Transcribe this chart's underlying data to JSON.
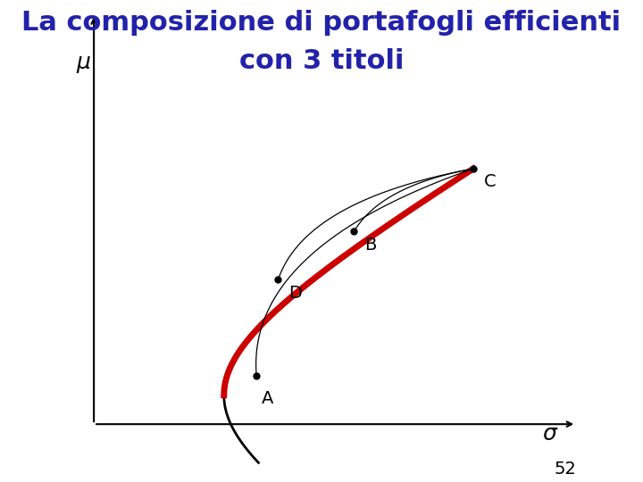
{
  "title_line1": "La composizione di portafogli efficienti",
  "title_line2": "con 3 titoli",
  "title_color": "#2222aa",
  "title_fontsize": 22,
  "background_color": "#ffffff",
  "ylabel": "μ",
  "xlabel": "σ",
  "axis_label_fontsize": 18,
  "page_number": "52",
  "point_A": [
    0.38,
    0.22
  ],
  "point_D": [
    0.42,
    0.42
  ],
  "point_B": [
    0.56,
    0.52
  ],
  "point_C": [
    0.78,
    0.65
  ],
  "point_labels": [
    "A",
    "D",
    "B",
    "C"
  ],
  "frontier_color": "#000000",
  "efficient_color": "#cc0000",
  "efficient_linewidth": 5,
  "frontier_linewidth": 2,
  "thin_line_color": "#000000",
  "thin_linewidth": 0.9,
  "mu_min": 0.18,
  "sigma_min": 0.32,
  "sigma_C": 0.78,
  "mu_C": 0.65
}
